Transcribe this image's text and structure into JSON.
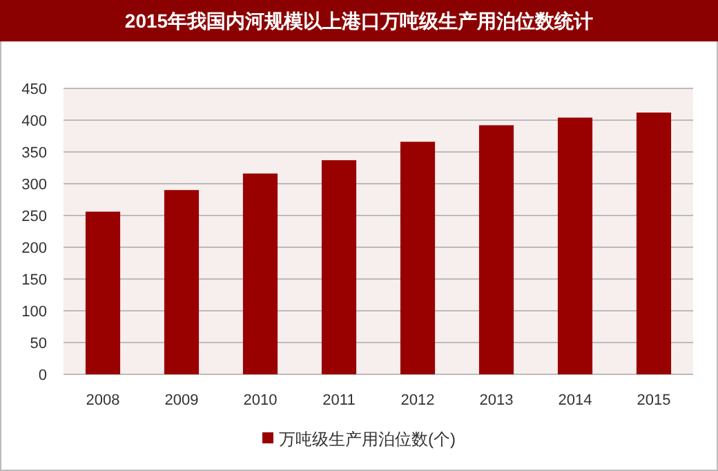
{
  "chart_data": {
    "type": "bar",
    "title": "2015年我国内河规模以上港口万吨级生产用泊位数统计",
    "categories": [
      "2008",
      "2009",
      "2010",
      "2011",
      "2012",
      "2013",
      "2014",
      "2015"
    ],
    "series": [
      {
        "name": "万吨级生产用泊位数(个)",
        "color": "#990000",
        "values": [
          256,
          290,
          316,
          337,
          366,
          392,
          404,
          412
        ]
      }
    ],
    "ylim": [
      0,
      450
    ],
    "yticks": [
      0,
      50,
      100,
      150,
      200,
      250,
      300,
      350,
      400,
      450
    ],
    "grid": "y",
    "legend": "bottom"
  }
}
